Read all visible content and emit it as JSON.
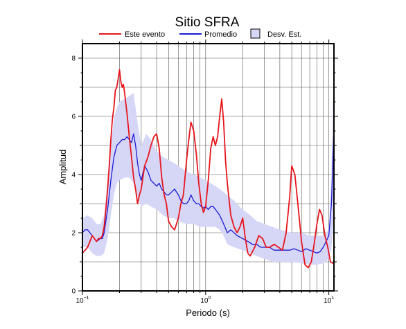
{
  "chart_data": {
    "type": "line",
    "title": "Sitio SFRA",
    "xlabel": "Periodo (s)",
    "ylabel": "Amplitud",
    "xscale": "log",
    "xlim": [
      0.1,
      11
    ],
    "ylim": [
      0,
      8.5
    ],
    "grid": true,
    "legend_placement": "top",
    "x_ticks": [
      {
        "value": 0.1,
        "base": "10",
        "exp": "−1"
      },
      {
        "value": 1,
        "base": "10",
        "exp": "0"
      },
      {
        "value": 10,
        "base": "10",
        "exp": "1"
      }
    ],
    "y_ticks": [
      0,
      2,
      4,
      6,
      8
    ],
    "legend": [
      {
        "label": "Este evento",
        "kind": "line",
        "color": "#e8141b"
      },
      {
        "label": "Promedio",
        "kind": "line",
        "color": "#1a1ad6"
      },
      {
        "label": "Desv. Est.",
        "kind": "patch",
        "color": "#d6d6f7"
      }
    ],
    "series": [
      {
        "name": "Este evento",
        "color": "#e8141b",
        "x": [
          0.1,
          0.105,
          0.11,
          0.115,
          0.12,
          0.125,
          0.13,
          0.135,
          0.14,
          0.145,
          0.15,
          0.155,
          0.16,
          0.165,
          0.17,
          0.175,
          0.18,
          0.185,
          0.19,
          0.195,
          0.2,
          0.205,
          0.21,
          0.215,
          0.22,
          0.23,
          0.24,
          0.25,
          0.26,
          0.27,
          0.28,
          0.29,
          0.3,
          0.32,
          0.34,
          0.36,
          0.38,
          0.4,
          0.42,
          0.44,
          0.46,
          0.48,
          0.5,
          0.53,
          0.56,
          0.6,
          0.63,
          0.66,
          0.7,
          0.73,
          0.76,
          0.8,
          0.84,
          0.88,
          0.92,
          0.96,
          1.0,
          1.05,
          1.1,
          1.15,
          1.2,
          1.25,
          1.3,
          1.35,
          1.4,
          1.45,
          1.5,
          1.6,
          1.7,
          1.8,
          1.9,
          2.0,
          2.1,
          2.2,
          2.3,
          2.5,
          2.7,
          2.9,
          3.1,
          3.3,
          3.6,
          3.9,
          4.2,
          4.5,
          4.8,
          5.0,
          5.3,
          5.6,
          6.0,
          6.4,
          6.8,
          7.2,
          7.6,
          8.0,
          8.4,
          8.8,
          9.3,
          9.8,
          10.3,
          10.8,
          11.0
        ],
        "y": [
          1.3,
          1.4,
          1.5,
          1.7,
          1.9,
          1.8,
          1.7,
          1.8,
          1.8,
          1.9,
          2.2,
          2.8,
          3.5,
          4.3,
          5.2,
          5.9,
          6.3,
          6.9,
          7.0,
          7.3,
          7.6,
          7.2,
          7.0,
          7.1,
          6.8,
          6.1,
          5.3,
          4.6,
          3.9,
          3.5,
          3.0,
          3.3,
          3.5,
          4.3,
          4.6,
          5.0,
          5.3,
          5.4,
          4.9,
          3.9,
          3.3,
          3.0,
          2.4,
          2.2,
          2.1,
          2.5,
          3.0,
          3.3,
          4.5,
          5.2,
          5.8,
          5.5,
          4.7,
          3.7,
          3.0,
          2.7,
          2.9,
          3.8,
          4.9,
          5.3,
          5.0,
          5.3,
          6.0,
          6.6,
          5.8,
          4.5,
          3.7,
          2.6,
          2.2,
          2.0,
          2.2,
          2.5,
          1.8,
          1.3,
          1.2,
          1.5,
          1.9,
          1.8,
          1.5,
          1.5,
          1.6,
          1.5,
          1.4,
          2.0,
          3.2,
          4.3,
          4.0,
          3.0,
          1.7,
          0.9,
          0.8,
          1.0,
          1.6,
          2.3,
          2.8,
          2.6,
          1.9,
          1.5,
          1.0,
          0.95,
          0.95
        ]
      },
      {
        "name": "Promedio",
        "color": "#1a1ad6",
        "x": [
          0.1,
          0.105,
          0.11,
          0.115,
          0.12,
          0.125,
          0.13,
          0.135,
          0.14,
          0.145,
          0.15,
          0.16,
          0.17,
          0.18,
          0.19,
          0.2,
          0.21,
          0.22,
          0.23,
          0.24,
          0.25,
          0.26,
          0.27,
          0.28,
          0.29,
          0.3,
          0.32,
          0.34,
          0.36,
          0.38,
          0.4,
          0.42,
          0.44,
          0.46,
          0.48,
          0.5,
          0.53,
          0.56,
          0.6,
          0.63,
          0.66,
          0.7,
          0.73,
          0.76,
          0.8,
          0.84,
          0.88,
          0.92,
          0.96,
          1.0,
          1.05,
          1.1,
          1.15,
          1.2,
          1.3,
          1.4,
          1.5,
          1.6,
          1.7,
          1.8,
          2.0,
          2.2,
          2.4,
          2.6,
          2.8,
          3.0,
          3.3,
          3.6,
          4.0,
          4.4,
          4.8,
          5.2,
          5.6,
          6.0,
          6.5,
          7.0,
          7.5,
          8.0,
          8.5,
          9.0,
          9.5,
          10.0,
          10.5,
          11.0
        ],
        "y": [
          2.0,
          2.1,
          2.1,
          2.0,
          1.9,
          1.8,
          1.7,
          1.75,
          1.8,
          1.8,
          2.0,
          2.8,
          3.8,
          4.6,
          5.0,
          5.1,
          5.2,
          5.2,
          5.3,
          5.2,
          5.1,
          5.4,
          5.0,
          4.4,
          4.0,
          3.8,
          4.3,
          4.1,
          3.8,
          3.7,
          3.6,
          3.7,
          3.5,
          3.4,
          3.3,
          3.3,
          3.4,
          3.5,
          3.3,
          3.1,
          3.0,
          3.0,
          3.1,
          3.3,
          3.1,
          3.0,
          3.0,
          2.9,
          2.85,
          2.9,
          2.8,
          2.9,
          2.9,
          2.8,
          2.6,
          2.3,
          2.0,
          2.1,
          2.0,
          1.9,
          1.8,
          1.7,
          1.6,
          1.6,
          1.5,
          1.5,
          1.5,
          1.4,
          1.4,
          1.4,
          1.4,
          1.45,
          1.4,
          1.35,
          1.45,
          1.4,
          1.35,
          1.3,
          1.35,
          1.5,
          1.7,
          1.9,
          3.0,
          5.6
        ]
      },
      {
        "name": "Desv. Est.",
        "kind": "band",
        "color": "#d6d6f7",
        "x": [
          0.1,
          0.11,
          0.12,
          0.13,
          0.14,
          0.15,
          0.16,
          0.17,
          0.18,
          0.19,
          0.2,
          0.22,
          0.24,
          0.26,
          0.28,
          0.3,
          0.33,
          0.36,
          0.4,
          0.45,
          0.5,
          0.55,
          0.6,
          0.7,
          0.8,
          0.9,
          1.0,
          1.1,
          1.2,
          1.3,
          1.4,
          1.5,
          1.7,
          2.0,
          2.3,
          2.6,
          3.0,
          3.5,
          4.0,
          5.0,
          6.0,
          7.0,
          8.0,
          9.0,
          10.0,
          10.5,
          11.0
        ],
        "lower": [
          1.5,
          1.5,
          1.3,
          1.2,
          1.2,
          1.3,
          1.8,
          2.6,
          3.3,
          3.7,
          3.8,
          3.9,
          3.9,
          3.7,
          3.2,
          2.9,
          3.0,
          2.9,
          2.8,
          2.6,
          2.5,
          2.5,
          2.4,
          2.3,
          2.3,
          2.2,
          2.2,
          2.2,
          2.2,
          2.1,
          1.9,
          1.6,
          1.5,
          1.4,
          1.3,
          1.2,
          1.1,
          1.0,
          1.0,
          1.0,
          0.95,
          0.9,
          0.9,
          0.95,
          1.1,
          1.5,
          2.6
        ],
        "upper": [
          2.5,
          2.6,
          2.5,
          2.3,
          2.3,
          2.6,
          3.8,
          5.0,
          5.9,
          6.3,
          6.5,
          6.6,
          6.7,
          6.8,
          5.8,
          5.0,
          5.4,
          5.2,
          4.8,
          4.6,
          4.5,
          4.4,
          4.3,
          4.1,
          4.0,
          3.9,
          3.8,
          3.7,
          3.6,
          3.5,
          3.4,
          3.3,
          3.1,
          2.8,
          2.6,
          2.4,
          2.3,
          2.2,
          2.1,
          2.0,
          2.0,
          1.9,
          1.9,
          1.9,
          2.1,
          4.0,
          8.3
        ]
      }
    ]
  }
}
